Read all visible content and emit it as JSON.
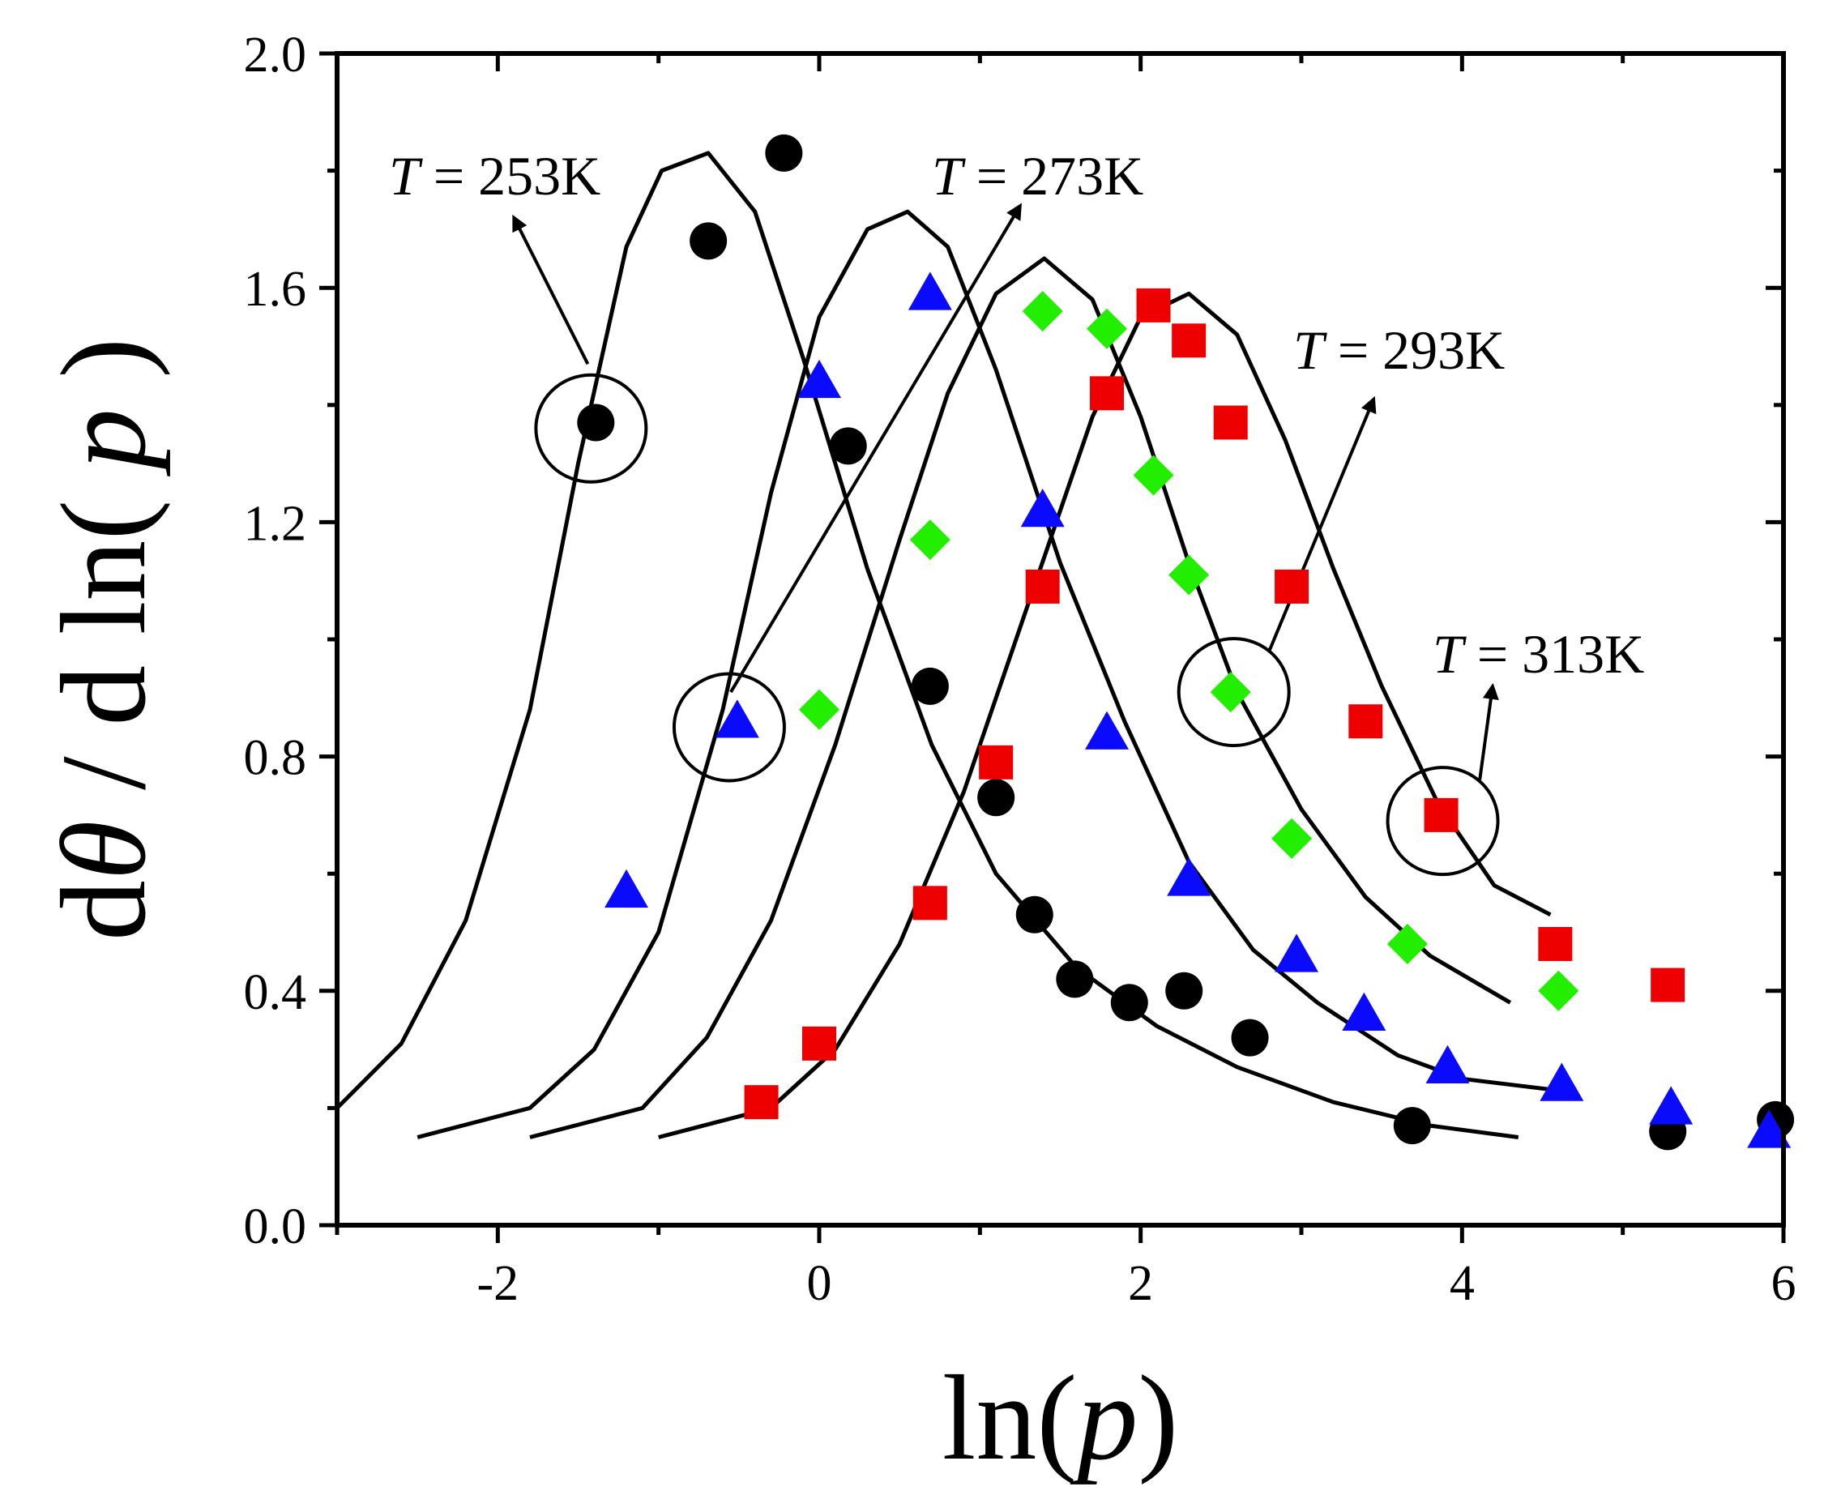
{
  "chart_data": {
    "type": "scatter",
    "title": "",
    "xlabel": {
      "prefix": "ln(",
      "var": "p",
      "suffix": ")"
    },
    "ylabel": {
      "p1": "d",
      "theta": "θ",
      "p2": " / d ln( ",
      "var": "p",
      "p3": " )"
    },
    "xlim": [
      -3,
      6
    ],
    "ylim": [
      0,
      2.0
    ],
    "x_ticks": [
      -2,
      0,
      2,
      4,
      6
    ],
    "x_tick_labels": [
      "-2",
      "0",
      "2",
      "4",
      "6"
    ],
    "y_ticks": [
      0,
      0.4,
      0.8,
      1.2,
      1.6,
      2.0
    ],
    "y_tick_labels": [
      "0.0",
      "0.4",
      "0.8",
      "1.2",
      "1.6",
      "2.0"
    ],
    "legend": "none",
    "grid": false,
    "annotations": [
      {
        "T": "T",
        "text": " = 253K",
        "arrow_from": [
          -1.44,
          1.47
        ],
        "arrow_to": [
          -1.9,
          1.72
        ],
        "circle_center": [
          -1.42,
          1.36
        ]
      },
      {
        "T": "T",
        "text": " = 273K",
        "arrow_from": [
          -0.55,
          0.91
        ],
        "arrow_to": [
          1.25,
          1.74
        ],
        "circle_center": [
          -0.56,
          0.85
        ]
      },
      {
        "T": "T",
        "text": " = 293K",
        "arrow_from": [
          2.8,
          0.98
        ],
        "arrow_to": [
          3.45,
          1.41
        ],
        "circle_center": [
          2.58,
          0.91
        ]
      },
      {
        "T": "T",
        "text": " = 313K",
        "arrow_from": [
          4.11,
          0.76
        ],
        "arrow_to": [
          4.19,
          0.92
        ],
        "circle_center": [
          3.88,
          0.69
        ]
      }
    ],
    "series": [
      {
        "marker": "circle",
        "color": "#000000",
        "points": [
          [
            -1.39,
            1.37
          ],
          [
            -0.69,
            1.68
          ],
          [
            -0.22,
            1.83
          ],
          [
            0.18,
            1.33
          ],
          [
            0.69,
            0.92
          ],
          [
            1.1,
            0.73
          ],
          [
            1.34,
            0.53
          ],
          [
            1.59,
            0.42
          ],
          [
            1.93,
            0.38
          ],
          [
            2.27,
            0.4
          ],
          [
            2.68,
            0.32
          ],
          [
            3.69,
            0.17
          ],
          [
            5.28,
            0.16
          ],
          [
            5.95,
            0.18
          ]
        ]
      },
      {
        "marker": "triangle",
        "color": "#0a0aff",
        "points": [
          [
            -1.2,
            0.57
          ],
          [
            -0.51,
            0.86
          ],
          [
            0.0,
            1.44
          ],
          [
            0.69,
            1.59
          ],
          [
            1.39,
            1.22
          ],
          [
            1.79,
            0.84
          ],
          [
            2.3,
            0.59
          ],
          [
            2.97,
            0.46
          ],
          [
            3.39,
            0.36
          ],
          [
            3.91,
            0.27
          ],
          [
            4.62,
            0.24
          ],
          [
            5.3,
            0.2
          ],
          [
            5.91,
            0.16
          ]
        ]
      },
      {
        "marker": "diamond",
        "color": "#22ee00",
        "points": [
          [
            0.0,
            0.88
          ],
          [
            0.69,
            1.17
          ],
          [
            1.39,
            1.56
          ],
          [
            1.79,
            1.53
          ],
          [
            2.08,
            1.28
          ],
          [
            2.3,
            1.11
          ],
          [
            2.56,
            0.91
          ],
          [
            2.94,
            0.66
          ],
          [
            3.66,
            0.48
          ],
          [
            4.6,
            0.4
          ]
        ]
      },
      {
        "marker": "square",
        "color": "#ee0000",
        "points": [
          [
            -0.36,
            0.21
          ],
          [
            0.0,
            0.31
          ],
          [
            0.69,
            0.55
          ],
          [
            1.1,
            0.79
          ],
          [
            1.39,
            1.09
          ],
          [
            1.79,
            1.42
          ],
          [
            2.08,
            1.57
          ],
          [
            2.3,
            1.51
          ],
          [
            2.56,
            1.37
          ],
          [
            2.94,
            1.09
          ],
          [
            3.4,
            0.86
          ],
          [
            3.87,
            0.7
          ],
          [
            4.58,
            0.48
          ],
          [
            5.28,
            0.41
          ]
        ]
      }
    ],
    "fit_curves": [
      {
        "color": "#000000",
        "points": [
          [
            -3.0,
            0.2
          ],
          [
            -2.6,
            0.31
          ],
          [
            -2.2,
            0.52
          ],
          [
            -1.8,
            0.88
          ],
          [
            -1.5,
            1.3
          ],
          [
            -1.2,
            1.67
          ],
          [
            -0.98,
            1.8
          ],
          [
            -0.69,
            1.83
          ],
          [
            -0.4,
            1.73
          ],
          [
            -0.1,
            1.48
          ],
          [
            0.3,
            1.12
          ],
          [
            0.7,
            0.82
          ],
          [
            1.1,
            0.6
          ],
          [
            1.6,
            0.44
          ],
          [
            2.1,
            0.34
          ],
          [
            2.6,
            0.27
          ],
          [
            3.2,
            0.21
          ],
          [
            3.8,
            0.17
          ],
          [
            4.35,
            0.15
          ]
        ]
      },
      {
        "color": "#000000",
        "points": [
          [
            -2.5,
            0.15
          ],
          [
            -1.8,
            0.2
          ],
          [
            -1.4,
            0.3
          ],
          [
            -1.0,
            0.5
          ],
          [
            -0.6,
            0.88
          ],
          [
            -0.3,
            1.25
          ],
          [
            0.0,
            1.55
          ],
          [
            0.3,
            1.7
          ],
          [
            0.55,
            1.73
          ],
          [
            0.8,
            1.67
          ],
          [
            1.1,
            1.46
          ],
          [
            1.5,
            1.13
          ],
          [
            1.9,
            0.86
          ],
          [
            2.3,
            0.62
          ],
          [
            2.7,
            0.47
          ],
          [
            3.1,
            0.38
          ],
          [
            3.6,
            0.29
          ],
          [
            4.0,
            0.25
          ],
          [
            4.6,
            0.23
          ]
        ]
      },
      {
        "color": "#000000",
        "points": [
          [
            -1.8,
            0.15
          ],
          [
            -1.1,
            0.2
          ],
          [
            -0.7,
            0.32
          ],
          [
            -0.3,
            0.52
          ],
          [
            0.1,
            0.82
          ],
          [
            0.5,
            1.17
          ],
          [
            0.8,
            1.42
          ],
          [
            1.1,
            1.59
          ],
          [
            1.4,
            1.65
          ],
          [
            1.7,
            1.58
          ],
          [
            2.0,
            1.38
          ],
          [
            2.3,
            1.13
          ],
          [
            2.6,
            0.91
          ],
          [
            3.0,
            0.71
          ],
          [
            3.4,
            0.56
          ],
          [
            3.8,
            0.46
          ],
          [
            4.3,
            0.38
          ]
        ]
      },
      {
        "color": "#000000",
        "points": [
          [
            -1.0,
            0.15
          ],
          [
            -0.3,
            0.2
          ],
          [
            0.1,
            0.3
          ],
          [
            0.5,
            0.48
          ],
          [
            0.9,
            0.74
          ],
          [
            1.3,
            1.06
          ],
          [
            1.7,
            1.38
          ],
          [
            2.0,
            1.55
          ],
          [
            2.3,
            1.59
          ],
          [
            2.6,
            1.52
          ],
          [
            2.9,
            1.34
          ],
          [
            3.2,
            1.12
          ],
          [
            3.5,
            0.92
          ],
          [
            3.85,
            0.72
          ],
          [
            4.2,
            0.58
          ],
          [
            4.55,
            0.53
          ]
        ]
      }
    ]
  }
}
